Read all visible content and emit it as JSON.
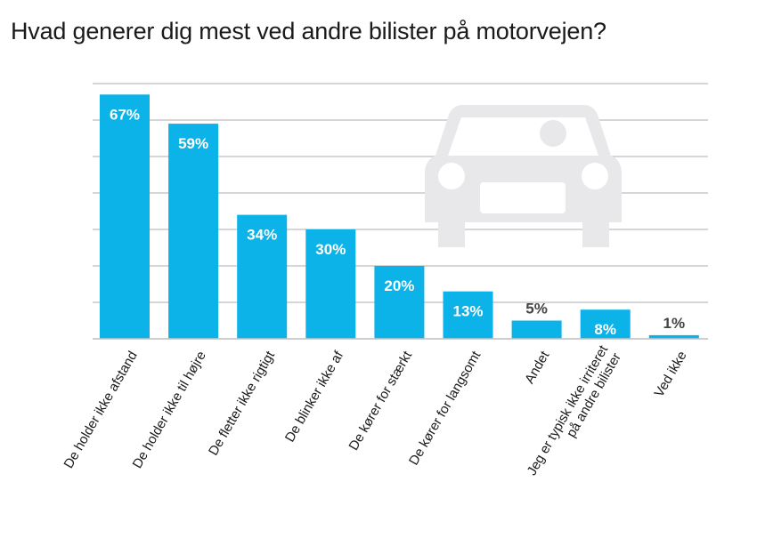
{
  "chart_data": {
    "type": "bar",
    "title": "Hvad generer dig mest ved andre bilister på motorvejen?",
    "categories": [
      "De holder ikke afstand",
      "De holder ikke til højre",
      "De fletter ikke rigtigt",
      "De blinker ikke af",
      "De kører for stærkt",
      "De kører for langsomt",
      "Andet",
      "Jeg er typisk ikke irriteret\npå andre bilister",
      "Ved ikke"
    ],
    "values": [
      67,
      59,
      34,
      30,
      20,
      13,
      5,
      8,
      1
    ],
    "data_labels": [
      "67%",
      "59%",
      "34%",
      "30%",
      "20%",
      "13%",
      "5%",
      "8%",
      "1%"
    ],
    "unit": "%",
    "ylim": [
      0,
      70
    ],
    "grid": true,
    "xlabel": "",
    "ylabel": "",
    "colors": {
      "bar": "#0cb3e8",
      "grid": "#c8c8c8",
      "label_inside": "#ffffff",
      "label_outside": "#444444",
      "car_icon": "#e8e8ea"
    },
    "decoration_icon": "car-icon"
  }
}
